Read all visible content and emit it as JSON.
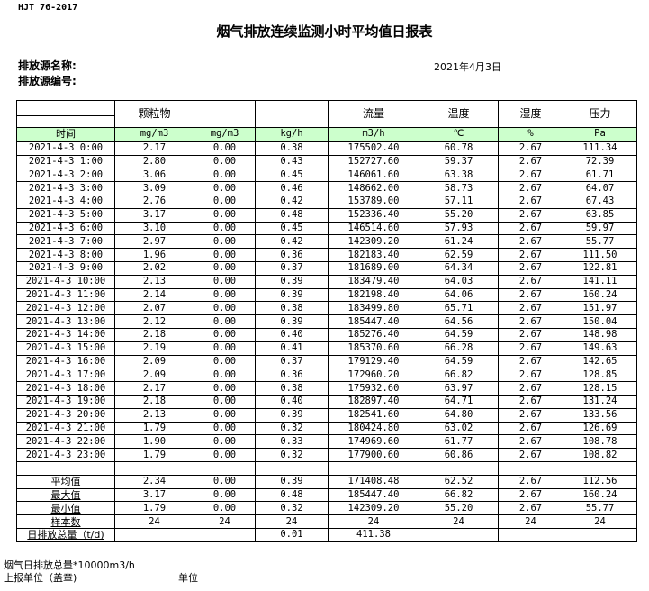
{
  "standard": "HJT  76-2017",
  "title": "烟气排放连续监测小时平均值日报表",
  "source_name_label": "排放源名称:",
  "source_id_label": "排放源编号:",
  "date": "2021年4月3日",
  "headers": [
    "",
    "颗粒物",
    "",
    "",
    "流量",
    "温度",
    "湿度",
    "压力"
  ],
  "units": [
    "时间",
    "mg/m3",
    "mg/m3",
    "kg/h",
    "m3/h",
    "℃",
    "%",
    "Pa"
  ],
  "rows": [
    [
      "2021-4-3 0:00",
      "2.17",
      "0.00",
      "0.38",
      "175502.40",
      "60.78",
      "2.67",
      "111.34"
    ],
    [
      "2021-4-3 1:00",
      "2.80",
      "0.00",
      "0.43",
      "152727.60",
      "59.37",
      "2.67",
      "72.39"
    ],
    [
      "2021-4-3 2:00",
      "3.06",
      "0.00",
      "0.45",
      "146061.60",
      "63.38",
      "2.67",
      "61.71"
    ],
    [
      "2021-4-3 3:00",
      "3.09",
      "0.00",
      "0.46",
      "148662.00",
      "58.73",
      "2.67",
      "64.07"
    ],
    [
      "2021-4-3 4:00",
      "2.76",
      "0.00",
      "0.42",
      "153789.00",
      "57.11",
      "2.67",
      "67.43"
    ],
    [
      "2021-4-3 5:00",
      "3.17",
      "0.00",
      "0.48",
      "152336.40",
      "55.20",
      "2.67",
      "63.85"
    ],
    [
      "2021-4-3 6:00",
      "3.10",
      "0.00",
      "0.45",
      "146514.60",
      "57.93",
      "2.67",
      "59.97"
    ],
    [
      "2021-4-3 7:00",
      "2.97",
      "0.00",
      "0.42",
      "142309.20",
      "61.24",
      "2.67",
      "55.77"
    ],
    [
      "2021-4-3 8:00",
      "1.96",
      "0.00",
      "0.36",
      "182183.40",
      "62.59",
      "2.67",
      "111.50"
    ],
    [
      "2021-4-3 9:00",
      "2.02",
      "0.00",
      "0.37",
      "181689.00",
      "64.34",
      "2.67",
      "122.81"
    ],
    [
      "2021-4-3 10:00",
      "2.13",
      "0.00",
      "0.39",
      "183479.40",
      "64.03",
      "2.67",
      "141.11"
    ],
    [
      "2021-4-3 11:00",
      "2.14",
      "0.00",
      "0.39",
      "182198.40",
      "64.06",
      "2.67",
      "160.24"
    ],
    [
      "2021-4-3 12:00",
      "2.07",
      "0.00",
      "0.38",
      "183499.80",
      "65.71",
      "2.67",
      "151.97"
    ],
    [
      "2021-4-3 13:00",
      "2.12",
      "0.00",
      "0.39",
      "185447.40",
      "64.56",
      "2.67",
      "150.04"
    ],
    [
      "2021-4-3 14:00",
      "2.18",
      "0.00",
      "0.40",
      "185276.40",
      "64.59",
      "2.67",
      "148.98"
    ],
    [
      "2021-4-3 15:00",
      "2.19",
      "0.00",
      "0.41",
      "185370.60",
      "66.28",
      "2.67",
      "149.63"
    ],
    [
      "2021-4-3 16:00",
      "2.09",
      "0.00",
      "0.37",
      "179129.40",
      "64.59",
      "2.67",
      "142.65"
    ],
    [
      "2021-4-3 17:00",
      "2.09",
      "0.00",
      "0.36",
      "172960.20",
      "66.82",
      "2.67",
      "128.85"
    ],
    [
      "2021-4-3 18:00",
      "2.17",
      "0.00",
      "0.38",
      "175932.60",
      "63.97",
      "2.67",
      "128.15"
    ],
    [
      "2021-4-3 19:00",
      "2.18",
      "0.00",
      "0.40",
      "182897.40",
      "64.71",
      "2.67",
      "131.24"
    ],
    [
      "2021-4-3 20:00",
      "2.13",
      "0.00",
      "0.39",
      "182541.60",
      "64.80",
      "2.67",
      "133.56"
    ],
    [
      "2021-4-3 21:00",
      "1.79",
      "0.00",
      "0.32",
      "180424.80",
      "63.02",
      "2.67",
      "126.69"
    ],
    [
      "2021-4-3 22:00",
      "1.90",
      "0.00",
      "0.33",
      "174969.60",
      "61.77",
      "2.67",
      "108.78"
    ],
    [
      "2021-4-3 23:00",
      "1.79",
      "0.00",
      "0.32",
      "177900.60",
      "60.86",
      "2.67",
      "108.82"
    ]
  ],
  "stats": [
    [
      "平均值",
      "2.34",
      "0.00",
      "0.39",
      "171408.48",
      "62.52",
      "2.67",
      "112.56"
    ],
    [
      "最大值",
      "3.17",
      "0.00",
      "0.48",
      "185447.40",
      "66.82",
      "2.67",
      "160.24"
    ],
    [
      "最小值",
      "1.79",
      "0.00",
      "0.32",
      "142309.20",
      "55.20",
      "2.67",
      "55.77"
    ],
    [
      "样本数",
      "24",
      "24",
      "24",
      "24",
      "24",
      "24",
      "24"
    ],
    [
      "日排放总量（t/d)",
      "",
      "",
      "0.01",
      "411.38",
      "",
      "",
      ""
    ]
  ],
  "footer": {
    "note": "烟气日排放总量*10000m3/h",
    "reporter": "上报单位（盖章)",
    "unit": "单位"
  }
}
